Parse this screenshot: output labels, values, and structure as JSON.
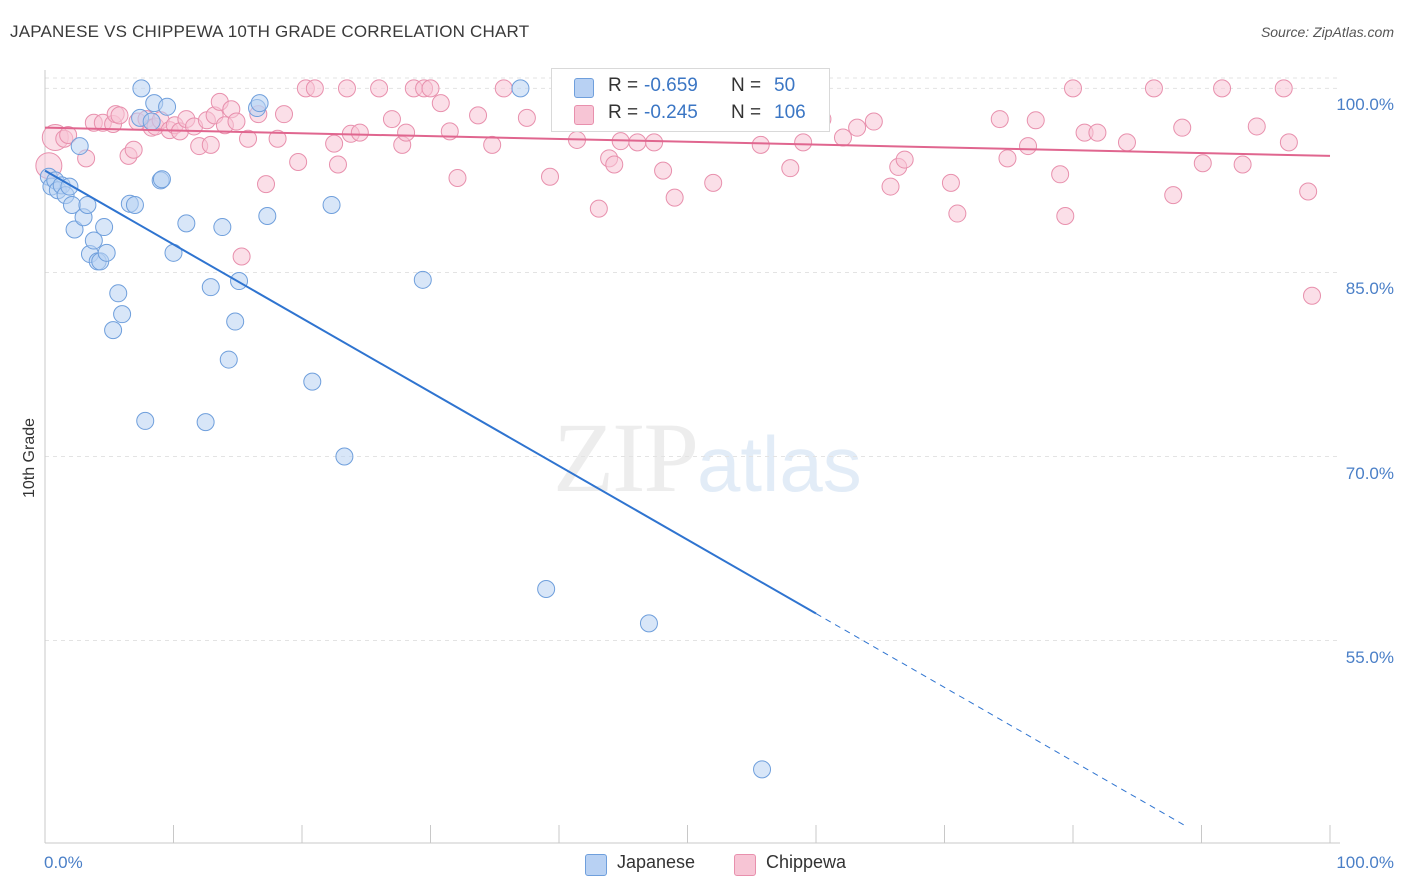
{
  "header": {
    "title": "JAPANESE VS CHIPPEWA 10TH GRADE CORRELATION CHART",
    "source": "Source: ZipAtlas.com"
  },
  "watermark": {
    "zip": "ZIP",
    "atlas": "atlas"
  },
  "legend": {
    "japanese": {
      "r_label": "R =",
      "r_value": "-0.659",
      "n_label": "N =",
      "n_value": "50"
    },
    "chippewa": {
      "r_label": "R =",
      "r_value": "-0.245",
      "n_label": "N =",
      "n_value": "106"
    }
  },
  "bottom_legend": {
    "japanese": "Japanese",
    "chippewa": "Chippewa"
  },
  "colors": {
    "japanese_fill": "#b8d1f3",
    "japanese_stroke": "#6f9fdc",
    "japanese_line": "#2f74d0",
    "chippewa_fill": "#f7c5d5",
    "chippewa_stroke": "#e890ad",
    "chippewa_line": "#e0668f",
    "tick_text": "#4a7fc7",
    "grid": "#e3e3e3"
  },
  "chart_data": {
    "type": "scatter",
    "title": "JAPANESE VS CHIPPEWA 10TH GRADE CORRELATION CHART",
    "xlabel": "",
    "ylabel": "10th Grade",
    "xlim": [
      0,
      100
    ],
    "ylim": [
      38.5,
      101.5
    ],
    "x_tick_labels": [
      "0.0%",
      "100.0%"
    ],
    "y_ticks": [
      {
        "value": 55,
        "label": "55.0%"
      },
      {
        "value": 70,
        "label": "70.0%"
      },
      {
        "value": 85,
        "label": "85.0%"
      },
      {
        "value": 100,
        "label": "100.0%"
      }
    ],
    "grid": "horizontal dashed",
    "legend_position": "top-center",
    "series": [
      {
        "name": "Japanese",
        "r": -0.659,
        "n": 50,
        "trend": {
          "x0": 0,
          "y0": 93.3,
          "x1": 60,
          "y1": 57.2,
          "dashed_to_x": 88.8
        },
        "points": [
          [
            0.3,
            92.8
          ],
          [
            0.5,
            92.0
          ],
          [
            0.8,
            92.5
          ],
          [
            1.0,
            91.7
          ],
          [
            1.3,
            92.1
          ],
          [
            1.6,
            91.3
          ],
          [
            1.9,
            92.0
          ],
          [
            2.1,
            90.5
          ],
          [
            2.3,
            88.5
          ],
          [
            2.7,
            95.3
          ],
          [
            3.0,
            89.5
          ],
          [
            3.3,
            90.5
          ],
          [
            3.5,
            86.5
          ],
          [
            3.8,
            87.6
          ],
          [
            4.1,
            85.9
          ],
          [
            4.3,
            85.9
          ],
          [
            4.6,
            88.7
          ],
          [
            4.8,
            86.6
          ],
          [
            5.3,
            80.3
          ],
          [
            5.7,
            83.3
          ],
          [
            6.0,
            81.6
          ],
          [
            6.6,
            90.6
          ],
          [
            7.0,
            90.5
          ],
          [
            7.4,
            97.6
          ],
          [
            7.5,
            100.0
          ],
          [
            7.8,
            72.9
          ],
          [
            8.3,
            97.3
          ],
          [
            8.5,
            98.8
          ],
          [
            9.0,
            92.5
          ],
          [
            9.1,
            92.6
          ],
          [
            9.5,
            98.5
          ],
          [
            10.0,
            86.6
          ],
          [
            11.0,
            89.0
          ],
          [
            12.5,
            72.8
          ],
          [
            12.9,
            83.8
          ],
          [
            13.8,
            88.7
          ],
          [
            14.3,
            77.9
          ],
          [
            14.8,
            81.0
          ],
          [
            15.1,
            84.3
          ],
          [
            16.5,
            98.4
          ],
          [
            16.7,
            98.8
          ],
          [
            17.3,
            89.6
          ],
          [
            20.8,
            76.1
          ],
          [
            22.3,
            90.5
          ],
          [
            23.3,
            70.0
          ],
          [
            29.4,
            84.4
          ],
          [
            37.0,
            100.0
          ],
          [
            39.0,
            59.2
          ],
          [
            47.0,
            56.4
          ],
          [
            55.8,
            44.5
          ]
        ]
      },
      {
        "name": "Chippewa",
        "r": -0.245,
        "n": 106,
        "trend": {
          "x0": 0,
          "y0": 96.8,
          "x1": 100,
          "y1": 94.5
        },
        "points": [
          [
            0.3,
            93.7
          ],
          [
            0.8,
            96.0
          ],
          [
            1.5,
            95.9
          ],
          [
            1.8,
            96.2
          ],
          [
            3.2,
            94.3
          ],
          [
            3.8,
            97.2
          ],
          [
            4.5,
            97.2
          ],
          [
            5.3,
            97.1
          ],
          [
            5.5,
            97.9
          ],
          [
            5.8,
            97.8
          ],
          [
            6.5,
            94.5
          ],
          [
            6.9,
            95.0
          ],
          [
            7.2,
            97.3
          ],
          [
            7.9,
            97.5
          ],
          [
            8.3,
            96.8
          ],
          [
            8.6,
            96.9
          ],
          [
            9.0,
            97.4
          ],
          [
            9.7,
            96.6
          ],
          [
            10.1,
            97.0
          ],
          [
            10.5,
            96.5
          ],
          [
            11.0,
            97.5
          ],
          [
            11.6,
            96.9
          ],
          [
            12.0,
            95.3
          ],
          [
            12.6,
            97.4
          ],
          [
            12.9,
            95.4
          ],
          [
            13.2,
            97.8
          ],
          [
            13.6,
            98.9
          ],
          [
            14.0,
            97.0
          ],
          [
            14.5,
            98.3
          ],
          [
            14.9,
            97.3
          ],
          [
            15.3,
            86.3
          ],
          [
            15.8,
            95.9
          ],
          [
            16.6,
            97.9
          ],
          [
            17.2,
            92.2
          ],
          [
            18.1,
            95.9
          ],
          [
            18.6,
            97.9
          ],
          [
            19.7,
            94.0
          ],
          [
            20.3,
            100.0
          ],
          [
            21.0,
            100.0
          ],
          [
            22.5,
            95.5
          ],
          [
            22.8,
            93.8
          ],
          [
            23.5,
            100.0
          ],
          [
            23.8,
            96.3
          ],
          [
            24.5,
            96.4
          ],
          [
            26.0,
            100.0
          ],
          [
            27.0,
            97.5
          ],
          [
            27.8,
            95.4
          ],
          [
            28.1,
            96.4
          ],
          [
            28.7,
            100.0
          ],
          [
            29.5,
            100.0
          ],
          [
            30.0,
            100.0
          ],
          [
            30.8,
            98.8
          ],
          [
            31.5,
            96.5
          ],
          [
            32.1,
            92.7
          ],
          [
            33.7,
            97.8
          ],
          [
            34.8,
            95.4
          ],
          [
            35.7,
            100.0
          ],
          [
            37.5,
            97.6
          ],
          [
            39.3,
            92.8
          ],
          [
            41.4,
            95.8
          ],
          [
            43.1,
            90.2
          ],
          [
            43.9,
            94.3
          ],
          [
            44.3,
            93.8
          ],
          [
            44.8,
            95.7
          ],
          [
            45.2,
            100.0
          ],
          [
            46.1,
            95.6
          ],
          [
            47.4,
            95.6
          ],
          [
            48.1,
            93.3
          ],
          [
            49.0,
            91.1
          ],
          [
            50.9,
            99.0
          ],
          [
            52.0,
            92.3
          ],
          [
            53.6,
            99.5
          ],
          [
            54.5,
            97.2
          ],
          [
            55.7,
            95.4
          ],
          [
            58.0,
            93.5
          ],
          [
            59.0,
            95.6
          ],
          [
            60.5,
            97.5
          ],
          [
            62.1,
            96.0
          ],
          [
            63.2,
            96.8
          ],
          [
            64.5,
            97.3
          ],
          [
            65.8,
            92.0
          ],
          [
            66.4,
            93.6
          ],
          [
            66.9,
            94.2
          ],
          [
            70.5,
            92.3
          ],
          [
            71.0,
            89.8
          ],
          [
            74.3,
            97.5
          ],
          [
            74.9,
            94.3
          ],
          [
            76.5,
            95.3
          ],
          [
            77.1,
            97.4
          ],
          [
            79.0,
            93.0
          ],
          [
            79.4,
            89.6
          ],
          [
            80.0,
            100.0
          ],
          [
            80.9,
            96.4
          ],
          [
            81.9,
            96.4
          ],
          [
            84.2,
            95.6
          ],
          [
            86.3,
            100.0
          ],
          [
            87.8,
            91.3
          ],
          [
            88.5,
            96.8
          ],
          [
            90.1,
            93.9
          ],
          [
            91.6,
            100.0
          ],
          [
            93.2,
            93.8
          ],
          [
            94.3,
            96.9
          ],
          [
            96.4,
            100.0
          ],
          [
            96.8,
            95.6
          ],
          [
            98.3,
            91.6
          ],
          [
            98.6,
            83.1
          ]
        ]
      }
    ]
  }
}
